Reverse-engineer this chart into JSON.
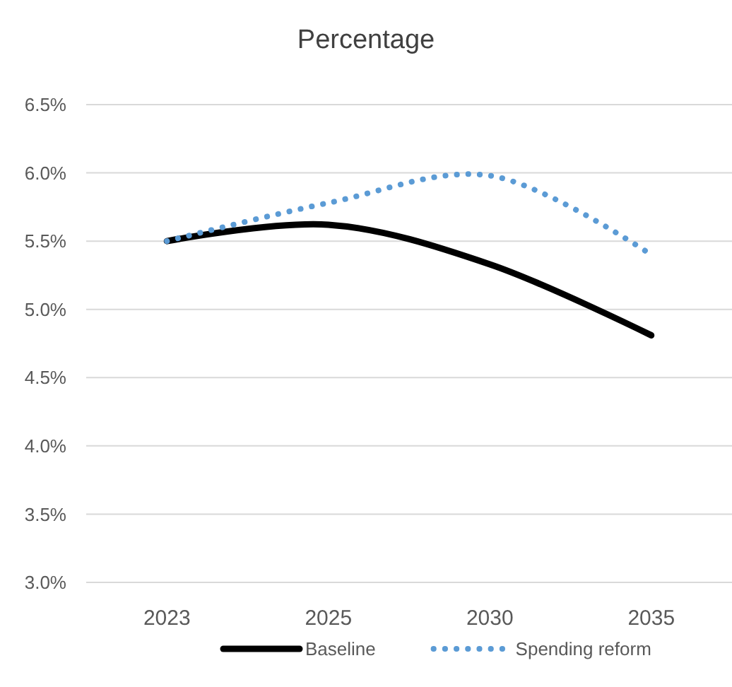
{
  "chart_data": {
    "type": "line",
    "title": "Percentage",
    "categories": [
      "2023",
      "2025",
      "2030",
      "2035"
    ],
    "series": [
      {
        "name": "Baseline",
        "color": "#000000",
        "values": [
          5.5,
          5.62,
          5.33,
          4.81
        ],
        "line_style": "solid"
      },
      {
        "name": "Spending reform",
        "color": "#5b9bd5",
        "values": [
          5.5,
          5.78,
          5.98,
          5.4
        ],
        "line_style": "dotted"
      }
    ],
    "ylim": [
      3.0,
      6.5
    ],
    "yticks": [
      {
        "value": 3.0,
        "label": "3.0%"
      },
      {
        "value": 3.5,
        "label": "3.5%"
      },
      {
        "value": 4.0,
        "label": "4.0%"
      },
      {
        "value": 4.5,
        "label": "4.5%"
      },
      {
        "value": 5.0,
        "label": "5.0%"
      },
      {
        "value": 5.5,
        "label": "5.5%"
      },
      {
        "value": 6.0,
        "label": "6.0%"
      },
      {
        "value": 6.5,
        "label": "6.5%"
      }
    ],
    "grid": "y",
    "legend": "bottom"
  }
}
